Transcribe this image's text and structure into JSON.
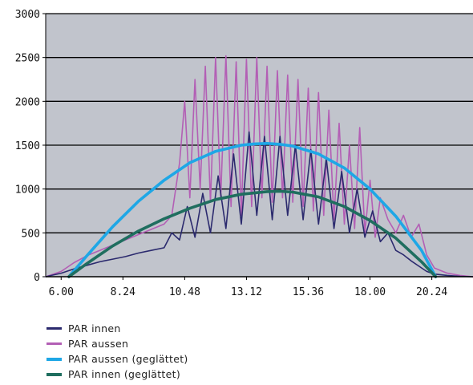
{
  "chart_data": {
    "type": "line",
    "title": "",
    "xlabel": "",
    "ylabel": "",
    "x_tick_labels": [
      "6.00",
      "8.24",
      "10.48",
      "13.12",
      "15.36",
      "18.00",
      "20.24"
    ],
    "x_tick_hours": [
      6.0,
      8.4,
      10.8,
      13.2,
      15.6,
      18.0,
      20.4
    ],
    "xlim": [
      5.4,
      22.0
    ],
    "ylim": [
      0,
      3000
    ],
    "y_ticks": [
      0,
      500,
      1000,
      1500,
      2000,
      2500,
      3000
    ],
    "grid": "horizontal",
    "legend_position": "bottom",
    "series": [
      {
        "name": "PAR innen",
        "color": "#2b2a6e",
        "x": [
          5.4,
          6.0,
          6.5,
          7.0,
          7.5,
          8.0,
          8.5,
          9.0,
          9.5,
          10.0,
          10.3,
          10.6,
          10.9,
          11.2,
          11.5,
          11.8,
          12.1,
          12.4,
          12.7,
          13.0,
          13.3,
          13.6,
          13.9,
          14.2,
          14.5,
          14.8,
          15.1,
          15.4,
          15.7,
          16.0,
          16.3,
          16.6,
          16.9,
          17.2,
          17.5,
          17.8,
          18.1,
          18.4,
          18.7,
          19.0,
          19.3,
          19.6,
          19.9,
          20.2,
          20.5,
          21.0,
          21.5,
          22.0
        ],
        "y": [
          0,
          40,
          90,
          130,
          170,
          200,
          230,
          270,
          300,
          330,
          500,
          420,
          800,
          450,
          950,
          500,
          1150,
          550,
          1400,
          600,
          1650,
          700,
          1600,
          650,
          1600,
          700,
          1500,
          650,
          1450,
          600,
          1350,
          550,
          1200,
          500,
          1000,
          450,
          750,
          400,
          500,
          300,
          250,
          180,
          120,
          60,
          30,
          15,
          5,
          0
        ]
      },
      {
        "name": "PAR aussen",
        "color": "#b35fb5",
        "x": [
          5.4,
          6.0,
          6.5,
          7.0,
          7.5,
          8.0,
          8.5,
          9.0,
          9.5,
          10.0,
          10.3,
          10.6,
          10.8,
          11.0,
          11.2,
          11.4,
          11.6,
          11.8,
          12.0,
          12.2,
          12.4,
          12.6,
          12.8,
          13.0,
          13.2,
          13.4,
          13.6,
          13.8,
          14.0,
          14.2,
          14.4,
          14.6,
          14.8,
          15.0,
          15.2,
          15.4,
          15.6,
          15.8,
          16.0,
          16.2,
          16.4,
          16.6,
          16.8,
          17.0,
          17.2,
          17.4,
          17.6,
          17.8,
          18.0,
          18.2,
          18.4,
          18.7,
          19.0,
          19.3,
          19.6,
          19.9,
          20.2,
          20.5,
          21.0,
          21.5,
          22.0
        ],
        "y": [
          0,
          60,
          160,
          240,
          300,
          360,
          420,
          480,
          540,
          600,
          700,
          1300,
          2000,
          900,
          2250,
          1000,
          2400,
          850,
          2500,
          900,
          2520,
          800,
          2450,
          700,
          2480,
          800,
          2500,
          900,
          2400,
          850,
          2350,
          900,
          2300,
          850,
          2250,
          800,
          2150,
          750,
          2100,
          700,
          1900,
          650,
          1750,
          600,
          1500,
          550,
          1700,
          500,
          1100,
          450,
          900,
          650,
          500,
          700,
          450,
          600,
          250,
          100,
          40,
          15,
          0
        ]
      },
      {
        "name": "PAR aussen (geglättet)",
        "color": "#1ea7e6",
        "x": [
          6.3,
          7.0,
          8.0,
          9.0,
          10.0,
          11.0,
          12.0,
          13.0,
          13.5,
          14.0,
          14.5,
          15.0,
          16.0,
          17.0,
          18.0,
          19.0,
          20.0,
          20.55
        ],
        "y": [
          0,
          240,
          570,
          860,
          1100,
          1300,
          1430,
          1500,
          1515,
          1520,
          1510,
          1490,
          1400,
          1240,
          1000,
          690,
          300,
          0
        ]
      },
      {
        "name": "PAR innen (geglättet)",
        "color": "#1f6e5f",
        "x": [
          6.3,
          7.0,
          8.0,
          9.0,
          10.0,
          11.0,
          12.0,
          13.0,
          14.0,
          14.5,
          15.0,
          16.0,
          17.0,
          18.0,
          19.0,
          20.0,
          20.55
        ],
        "y": [
          0,
          150,
          350,
          520,
          660,
          780,
          880,
          940,
          970,
          975,
          965,
          910,
          800,
          640,
          440,
          170,
          0
        ]
      }
    ]
  }
}
